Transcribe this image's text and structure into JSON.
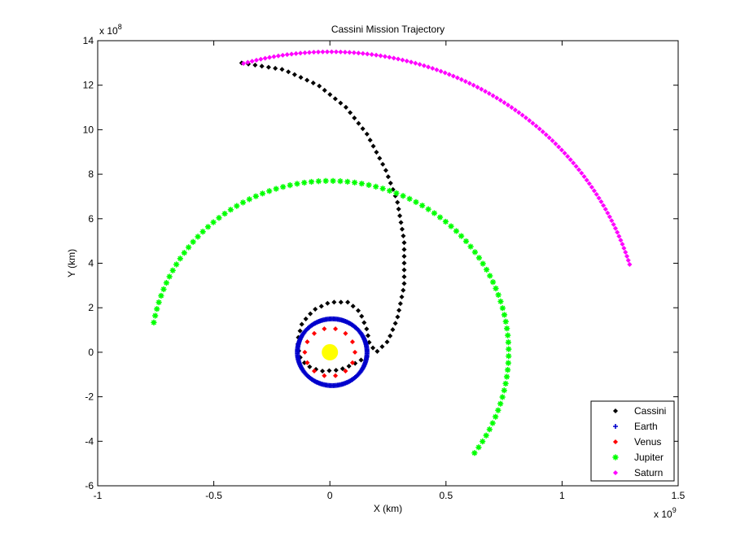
{
  "chart_data": {
    "type": "scatter",
    "title": "Cassini Mission Trajectory",
    "xlabel": "X (km)",
    "ylabel": "Y (km)",
    "xlim": [
      -1,
      1.5
    ],
    "ylim": [
      -6,
      14
    ],
    "x_ticks": [
      -1,
      -0.5,
      0,
      0.5,
      1,
      1.5
    ],
    "y_ticks": [
      -6,
      -4,
      -2,
      0,
      2,
      4,
      6,
      8,
      10,
      12,
      14
    ],
    "x_tick_labels": [
      "-1",
      "-0.5",
      "0",
      "0.5",
      "1",
      "1.5"
    ],
    "y_tick_labels": [
      "-6",
      "-4",
      "-2",
      "0",
      "2",
      "4",
      "6",
      "8",
      "10",
      "12",
      "14"
    ],
    "x_multiplier": "x 10",
    "x_multiplier_exp": "9",
    "y_multiplier": "x 10",
    "y_multiplier_exp": "8",
    "grid": false,
    "legend_position": "bottom-right",
    "sun": {
      "x": 0,
      "y": 0,
      "color": "#ffff00"
    },
    "series": [
      {
        "name": "Cassini",
        "color": "#000000",
        "marker": "diamond",
        "path": [
          [
            0.16,
            -0.2
          ],
          [
            0.1,
            -0.55
          ],
          [
            0.04,
            -0.8
          ],
          [
            -0.04,
            -0.85
          ],
          [
            -0.1,
            -0.6
          ],
          [
            -0.13,
            -0.2
          ],
          [
            -0.14,
            0.5
          ],
          [
            -0.12,
            1.3
          ],
          [
            -0.07,
            1.9
          ],
          [
            0.0,
            2.25
          ],
          [
            0.08,
            2.25
          ],
          [
            0.13,
            1.8
          ],
          [
            0.16,
            1.0
          ],
          [
            0.17,
            0.4
          ],
          [
            0.2,
            0.0
          ],
          [
            0.25,
            0.5
          ],
          [
            0.29,
            1.5
          ],
          [
            0.32,
            3.0
          ],
          [
            0.32,
            5.0
          ],
          [
            0.29,
            6.8
          ],
          [
            0.24,
            8.2
          ],
          [
            0.16,
            9.8
          ],
          [
            0.07,
            11.0
          ],
          [
            -0.05,
            12.0
          ],
          [
            -0.2,
            12.7
          ],
          [
            -0.38,
            13.0
          ]
        ],
        "count": 90
      },
      {
        "name": "Earth",
        "color": "#0000cc",
        "marker": "plus",
        "circle": {
          "cx": 0.01,
          "cy": 0,
          "rx": 0.15,
          "ry": 1.5,
          "start_deg": 0,
          "end_deg": 360
        },
        "count": 160
      },
      {
        "name": "Venus",
        "color": "#ff0000",
        "marker": "diamond",
        "circle": {
          "cx": 0,
          "cy": 0,
          "rx": 0.108,
          "ry": 1.08,
          "start_deg": 0,
          "end_deg": 360
        },
        "count": 14
      },
      {
        "name": "Jupiter",
        "color": "#00ff00",
        "marker": "star",
        "circle": {
          "cx": 0,
          "cy": 0,
          "rx": 0.77,
          "ry": 7.7,
          "start_deg": 170,
          "end_deg": -36
        },
        "count": 90
      },
      {
        "name": "Saturn",
        "color": "#ff00ff",
        "marker": "diamond",
        "circle": {
          "cx": 0,
          "cy": 0,
          "rx": 1.35,
          "ry": 13.5,
          "start_deg": 106,
          "end_deg": 17
        },
        "count": 110
      }
    ]
  }
}
